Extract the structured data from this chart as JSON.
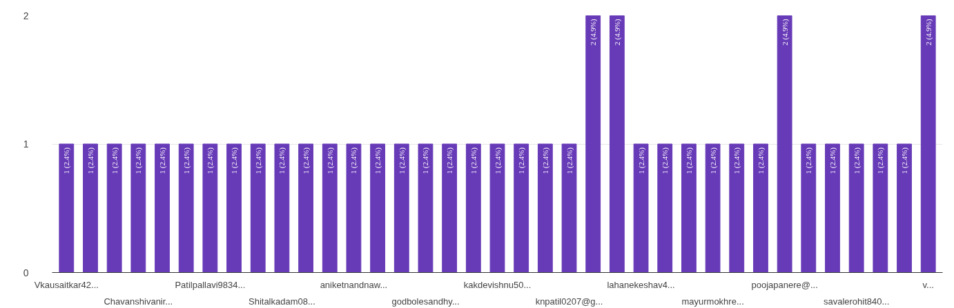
{
  "chart_data": {
    "type": "bar",
    "categories": [
      "Vkausaitkar42...",
      null,
      null,
      "Chavanshivanir...",
      null,
      null,
      "Patilpallavi9834...",
      null,
      null,
      "Shitalkadam08...",
      null,
      null,
      "aniketnandnaw...",
      null,
      null,
      "godbolesandhy...",
      null,
      null,
      "kakdevishnu50...",
      null,
      null,
      "knpatil0207@g...",
      null,
      null,
      "lahanekeshav4...",
      null,
      null,
      "mayurmokhre...",
      null,
      null,
      "poojapanere@...",
      null,
      null,
      "savalerohit840...",
      null,
      null,
      "v..."
    ],
    "values": [
      1,
      1,
      1,
      1,
      1,
      1,
      1,
      1,
      1,
      1,
      1,
      1,
      1,
      1,
      1,
      1,
      1,
      1,
      1,
      1,
      1,
      1,
      2,
      2,
      1,
      1,
      1,
      1,
      1,
      1,
      2,
      1,
      1,
      1,
      1,
      1,
      2
    ],
    "value_labels": [
      "1 (2.4%)",
      "1 (2.4%)",
      "1 (2.4%)",
      "1 (2.4%)",
      "1 (2.4%)",
      "1 (2.4%)",
      "1 (2.4%)",
      "1 (2.4%)",
      "1 (2.4%)",
      "1 (2.4%)",
      "1 (2.4%)",
      "1 (2.4%)",
      "1 (2.4%)",
      "1 (2.4%)",
      "1 (2.4%)",
      "1 (2.4%)",
      "1 (2.4%)",
      "1 (2.4%)",
      "1 (2.4%)",
      "1 (2.4%)",
      "1 (2.4%)",
      "1 (2.4%)",
      "2 (4.9%)",
      "2 (4.9%)",
      "1 (2.4%)",
      "1 (2.4%)",
      "1 (2.4%)",
      "1 (2.4%)",
      "1 (2.4%)",
      "1 (2.4%)",
      "2 (4.9%)",
      "1 (2.4%)",
      "1 (2.4%)",
      "1 (2.4%)",
      "1 (2.4%)",
      "1 (2.4%)",
      "2 (4.9%)"
    ],
    "color": "#673ab7",
    "ylim": [
      0,
      2
    ],
    "yticks": [
      0,
      1,
      2
    ],
    "grid": "y"
  }
}
